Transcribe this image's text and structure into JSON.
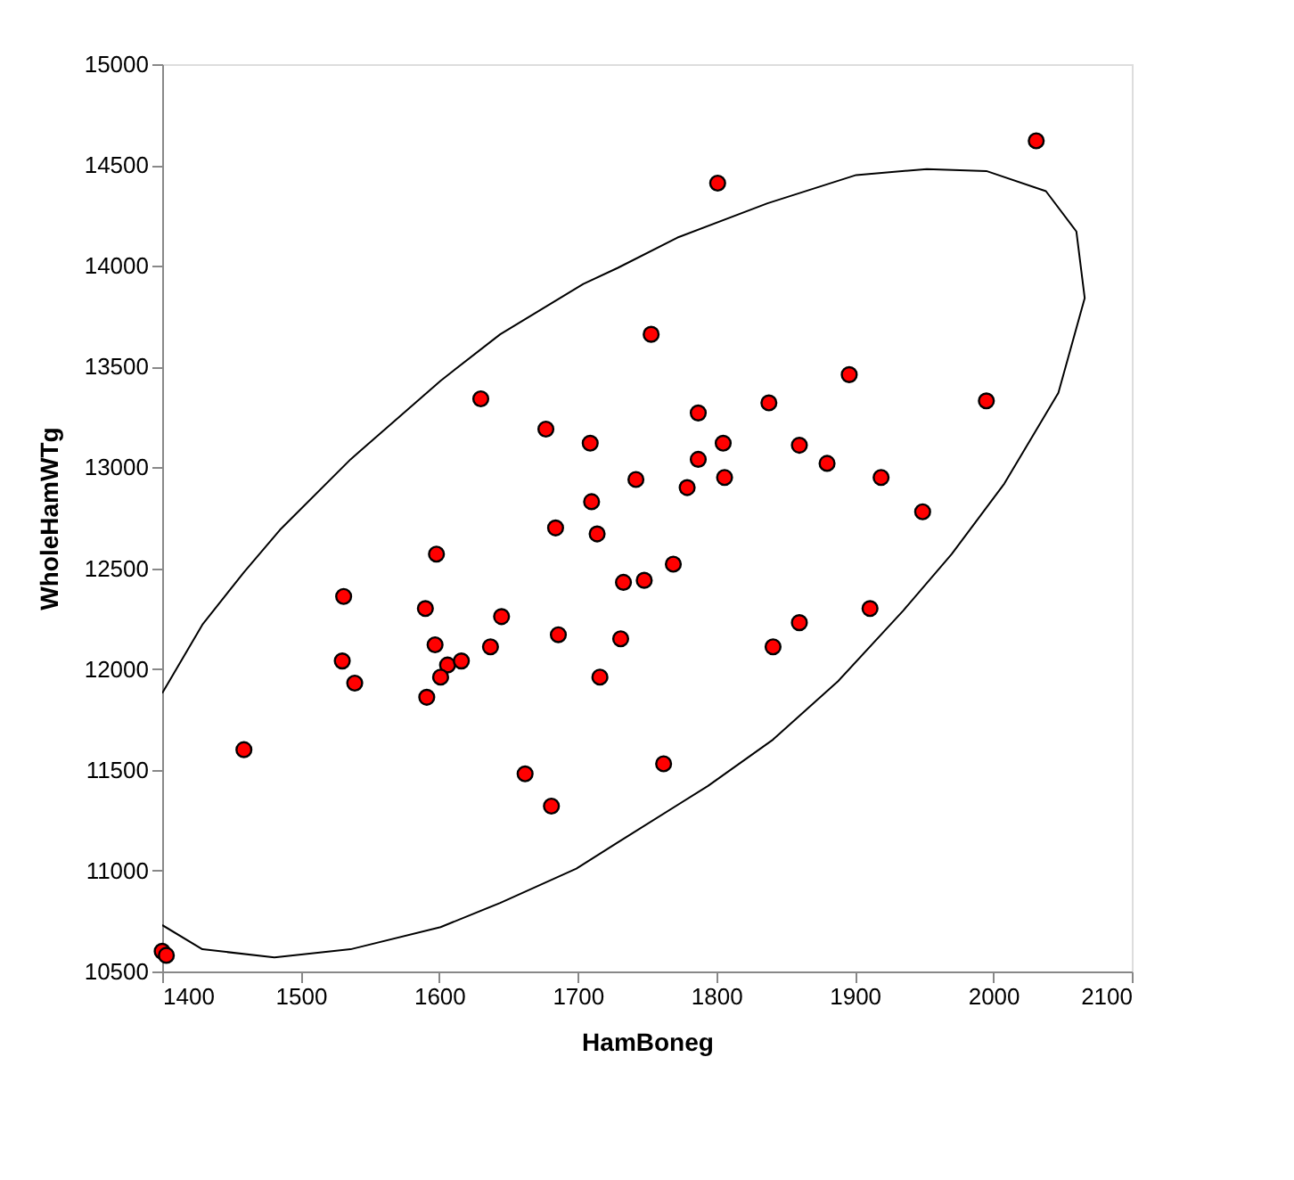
{
  "chart_data": {
    "type": "scatter",
    "xlabel": "HamBoneg",
    "ylabel": "WholeHamWTg",
    "xlim": [
      1400,
      2100
    ],
    "xticks": [
      1400,
      1500,
      1600,
      1700,
      1800,
      1900,
      2000,
      2100
    ],
    "ylim": [
      10500,
      15000
    ],
    "yticks": [
      10500,
      11000,
      11500,
      12000,
      12500,
      13000,
      13500,
      14000,
      14500,
      15000
    ],
    "grid": false,
    "marker": "circle",
    "series": [
      {
        "color": "#ff0000",
        "x": [
          1630,
          1677,
          1709,
          1742,
          1710,
          1684,
          1714,
          1598,
          1733,
          2031,
          1801,
          1753,
          1896,
          1995,
          1838,
          1787,
          1805,
          1860,
          1787,
          1880,
          1779,
          1806,
          1919,
          1949,
          1769,
          1748,
          1731,
          1841,
          1860,
          1911,
          1762,
          1531,
          1590,
          1645,
          1686,
          1597,
          1637,
          1530,
          1606,
          1616,
          1539,
          1601,
          1716,
          1591,
          1459,
          1662,
          1681,
          1400,
          1403
        ],
        "values": [
          13340,
          13190,
          13120,
          12940,
          12830,
          12700,
          12670,
          12570,
          12430,
          14620,
          14410,
          13660,
          13460,
          13330,
          13320,
          13270,
          13120,
          13110,
          13040,
          13020,
          12900,
          12950,
          12950,
          12780,
          12520,
          12440,
          12150,
          12110,
          12230,
          12300,
          11530,
          12360,
          12300,
          12260,
          12170,
          12120,
          12110,
          12040,
          12020,
          12040,
          11930,
          11960,
          11960,
          11860,
          11600,
          11480,
          11320,
          10600,
          10580
        ]
      },
      {
        "type": "line",
        "color": "#000000",
        "marker": "none",
        "x": [
          1400,
          1429,
          1481,
          1536,
          1601,
          1644,
          1699,
          1729,
          1794,
          1841,
          1888,
          1935,
          1970,
          2008,
          2047,
          2066,
          2060,
          2038,
          1995,
          1952,
          1901,
          1837,
          1772,
          1729,
          1704,
          1644,
          1601,
          1536,
          1485,
          1459,
          1429,
          1400
        ],
        "values": [
          10730,
          10610,
          10570,
          10610,
          10720,
          10840,
          11010,
          11140,
          11420,
          11650,
          11940,
          12290,
          12570,
          12920,
          13370,
          13840,
          14170,
          14370,
          14470,
          14480,
          14450,
          14310,
          14140,
          13990,
          13910,
          13660,
          13430,
          13040,
          12690,
          12480,
          12220,
          11880
        ]
      }
    ]
  }
}
